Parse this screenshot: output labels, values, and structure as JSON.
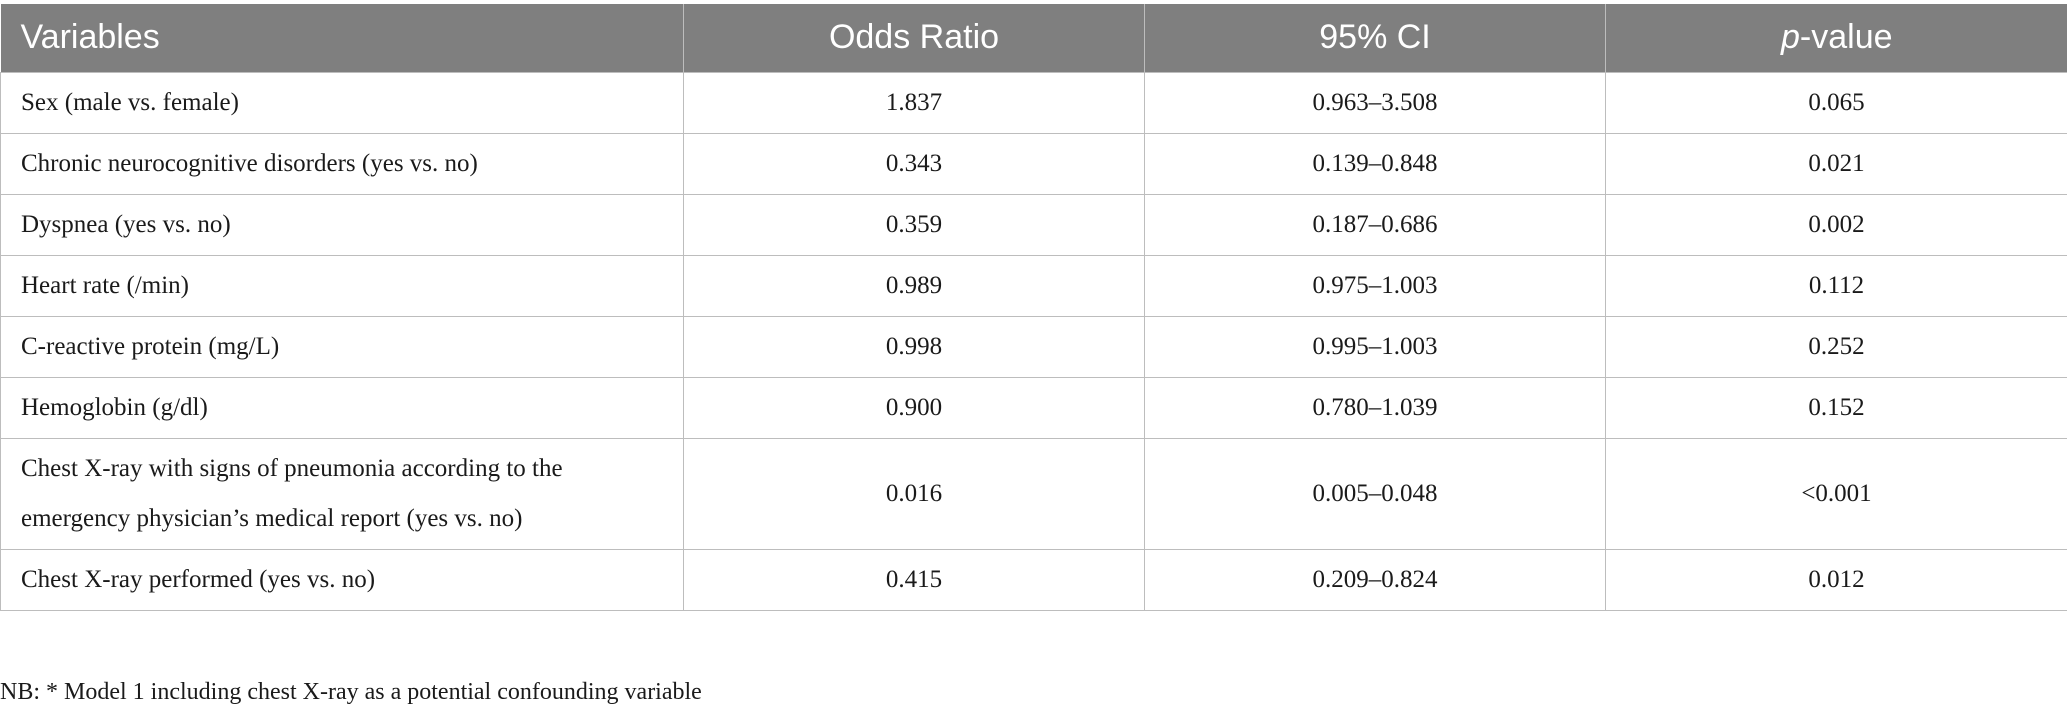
{
  "table": {
    "headers": {
      "variables": "Variables",
      "odds_ratio": "Odds Ratio",
      "ci": "95% CI",
      "pvalue_italic": "p",
      "pvalue_rest": "-value"
    },
    "rows": [
      {
        "variable": "Sex (male vs. female)",
        "or": "1.837",
        "ci": "0.963–3.508",
        "p": "0.065"
      },
      {
        "variable": "Chronic neurocognitive disorders (yes vs. no)",
        "or": "0.343",
        "ci": "0.139–0.848",
        "p": "0.021"
      },
      {
        "variable": "Dyspnea (yes vs. no)",
        "or": "0.359",
        "ci": "0.187–0.686",
        "p": "0.002"
      },
      {
        "variable": "Heart rate (/min)",
        "or": "0.989",
        "ci": "0.975–1.003",
        "p": "0.112"
      },
      {
        "variable": "C-reactive protein (mg/L)",
        "or": "0.998",
        "ci": "0.995–1.003",
        "p": "0.252"
      },
      {
        "variable": "Hemoglobin (g/dl)",
        "or": "0.900",
        "ci": "0.780–1.039",
        "p": "0.152"
      },
      {
        "variable": "Chest X-ray with signs of pneumonia according to the emergency physician’s medical report (yes vs. no)",
        "or": "0.016",
        "ci": "0.005–0.048",
        "p": "<0.001"
      },
      {
        "variable": "Chest X-ray performed (yes vs. no)",
        "or": "0.415",
        "ci": "0.209–0.824",
        "p": "0.012"
      }
    ]
  },
  "footnote": "NB: * Model 1 including chest X-ray as a potential confounding variable",
  "colors": {
    "header_bg": "#7f7f7f",
    "header_text": "#ffffff",
    "border": "#bdbdbd"
  }
}
